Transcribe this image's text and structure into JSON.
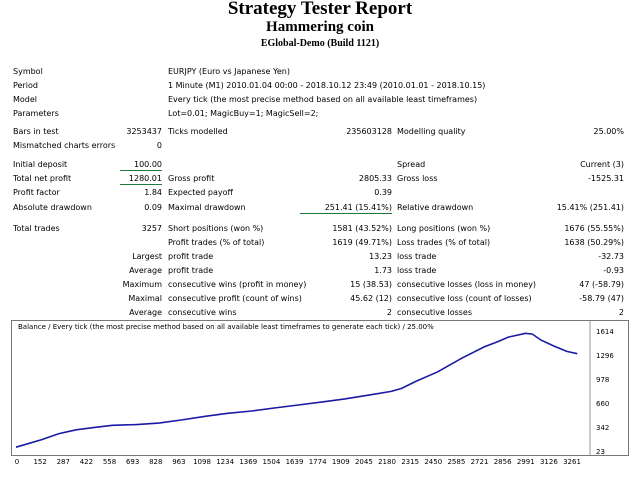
{
  "header": {
    "title": "Strategy Tester Report",
    "subtitle": "Hammering coin",
    "build": "EGlobal-Demo (Build 1121)"
  },
  "rows": {
    "symbol_label": "Symbol",
    "symbol_value": "EURJPY (Euro vs Japanese Yen)",
    "period_label": "Period",
    "period_value": "1 Minute (M1) 2010.01.04 00:00 - 2018.10.12 23:49 (2010.01.01 - 2018.10.15)",
    "model_label": "Model",
    "model_value": "Every tick (the most precise method based on all available least timeframes)",
    "params_label": "Parameters",
    "params_value": "Lot=0.01; MagicBuy=1; MagicSell=2;",
    "bars_label": "Bars in test",
    "bars_value": "3253437",
    "ticks_label": "Ticks modelled",
    "ticks_value": "235603128",
    "quality_label": "Modelling quality",
    "quality_value": "25.00%",
    "mismatch_label": "Mismatched charts errors",
    "mismatch_value": "0",
    "deposit_label": "Initial deposit",
    "deposit_value": "100.00",
    "spread_label": "Spread",
    "spread_value": "Current (3)",
    "netprofit_label": "Total net profit",
    "netprofit_value": "1280.01",
    "grossprofit_label": "Gross profit",
    "grossprofit_value": "2805.33",
    "grossloss_label": "Gross loss",
    "grossloss_value": "-1525.31",
    "pf_label": "Profit factor",
    "pf_value": "1.84",
    "payoff_label": "Expected payoff",
    "payoff_value": "0.39",
    "absdd_label": "Absolute drawdown",
    "absdd_value": "0.09",
    "maxdd_label": "Maximal drawdown",
    "maxdd_value": "251.41 (15.41%)",
    "reldd_label": "Relative drawdown",
    "reldd_value": "15.41% (251.41)",
    "trades_label": "Total trades",
    "trades_value": "3257",
    "short_label": "Short positions (won %)",
    "short_value": "1581 (43.52%)",
    "long_label": "Long positions (won %)",
    "long_value": "1676 (55.55%)",
    "profit_trades_label": "Profit trades (% of total)",
    "profit_trades_value": "1619 (49.71%)",
    "loss_trades_label": "Loss trades (% of total)",
    "loss_trades_value": "1638 (50.29%)",
    "largest_label": "Largest",
    "largest_profit_label": "profit trade",
    "largest_profit_value": "13.23",
    "largest_loss_label": "loss trade",
    "largest_loss_value": "-32.73",
    "average_label": "Average",
    "average_profit_label": "profit trade",
    "average_profit_value": "1.73",
    "average_loss_label": "loss trade",
    "average_loss_value": "-0.93",
    "maximum_label": "Maximum",
    "max_wins_label": "consecutive wins (profit in money)",
    "max_wins_value": "15 (38.53)",
    "max_losses_label": "consecutive losses (loss in money)",
    "max_losses_value": "47 (-58.79)",
    "maximal_label": "Maximal",
    "maximal_profit_label": "consecutive profit (count of wins)",
    "maximal_profit_value": "45.62 (12)",
    "maximal_loss_label": "consecutive loss (count of losses)",
    "maximal_loss_value": "-58.79 (47)",
    "avg2_label": "Average",
    "avg_wins_label": "consecutive wins",
    "avg_wins_value": "2",
    "avg_losses_label": "consecutive losses",
    "avg_losses_value": "2"
  },
  "chart_data": {
    "type": "line",
    "title": "Balance / Every tick (the most precise method based on all available least timeframes to generate each tick) / 25.00%",
    "x_ticks": [
      "0",
      "152",
      "287",
      "422",
      "558",
      "693",
      "828",
      "963",
      "1098",
      "1234",
      "1369",
      "1504",
      "1639",
      "1774",
      "1909",
      "2045",
      "2180",
      "2315",
      "2450",
      "2585",
      "2721",
      "2856",
      "2991",
      "3126",
      "3261"
    ],
    "y_ticks": [
      "1614",
      "1296",
      "978",
      "660",
      "342",
      "23"
    ],
    "xlim": [
      0,
      3300
    ],
    "ylim": [
      23,
      1614
    ],
    "line_color": "#1a1aa6",
    "series": [
      {
        "x": [
          0,
          60,
          150,
          250,
          350,
          450,
          560,
          700,
          830,
          960,
          1100,
          1230,
          1370,
          1500,
          1640,
          1780,
          1910,
          2050,
          2180,
          2240,
          2320,
          2450,
          2590,
          2720,
          2800,
          2860,
          2900,
          2960,
          3000,
          3050,
          3126,
          3200,
          3261
        ],
        "y": [
          100,
          140,
          200,
          280,
          330,
          360,
          390,
          400,
          420,
          460,
          510,
          550,
          580,
          620,
          660,
          700,
          740,
          790,
          840,
          880,
          970,
          1100,
          1280,
          1430,
          1500,
          1560,
          1580,
          1610,
          1600,
          1520,
          1440,
          1370,
          1340
        ]
      }
    ]
  }
}
